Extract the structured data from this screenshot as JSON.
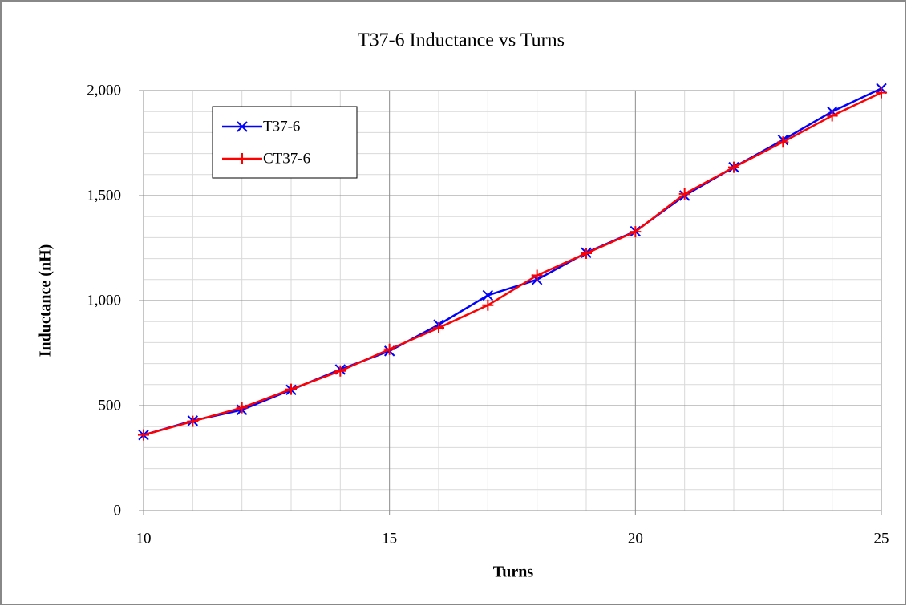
{
  "chart_data": {
    "type": "line",
    "title": "T37-6 Inductance vs Turns",
    "x_label": "Turns",
    "y_label": "Inductance (nH)",
    "x": [
      10,
      11,
      12,
      13,
      14,
      15,
      16,
      17,
      18,
      19,
      20,
      21,
      22,
      23,
      24,
      25
    ],
    "series": [
      {
        "name": "T37-6",
        "color": "#0000ff",
        "marker": "x",
        "values": [
          360,
          428,
          480,
          575,
          672,
          760,
          885,
          1025,
          1100,
          1228,
          1330,
          1500,
          1635,
          1765,
          1900,
          2010
        ]
      },
      {
        "name": "CT37-6",
        "color": "#ff0000",
        "marker": "+",
        "values": [
          360,
          425,
          490,
          578,
          665,
          768,
          870,
          978,
          1120,
          1225,
          1328,
          1508,
          1635,
          1755,
          1880,
          1990
        ]
      }
    ],
    "xlim": [
      10,
      25
    ],
    "xticks": [
      10,
      15,
      20,
      25
    ],
    "ylim": [
      0,
      2000
    ],
    "yticks": [
      0,
      500,
      {
        "value": 1000,
        "label": "1,000"
      },
      {
        "value": 1500,
        "label": "1,500"
      },
      {
        "value": 2000,
        "label": "2,000"
      }
    ],
    "grid": true,
    "minor_divisions": 5,
    "legend": "upper left"
  }
}
